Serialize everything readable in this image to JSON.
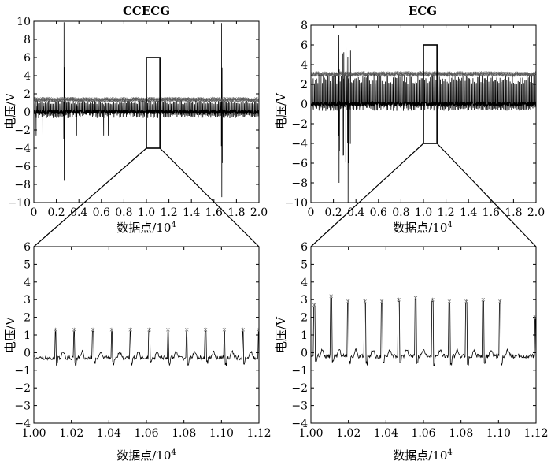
{
  "chart_data": [
    {
      "id": "top-left",
      "type": "line",
      "title": "CCECG",
      "xlabel": "数据点/10",
      "xlabel_exp": "4",
      "ylabel": "电压/V",
      "xlim": [
        0,
        2.0
      ],
      "ylim": [
        -10,
        10
      ],
      "xticks": [
        "0",
        "0.2",
        "0.4",
        "0.6",
        "0.8",
        "1.0",
        "1.2",
        "1.4",
        "1.6",
        "1.8",
        "2.0"
      ],
      "yticks": [
        "−10",
        "−8",
        "−6",
        "−4",
        "−2",
        "0",
        "2",
        "4",
        "6",
        "8",
        "10"
      ],
      "zoom_box": {
        "x0": 1.0,
        "x1": 1.12,
        "y0": -4,
        "y1": 6
      },
      "series": [
        {
          "values": {
            "baseline": 0,
            "r_peak": 1.2,
            "spike_events": [
              [
                0.27,
                9.9,
                -7.6
              ],
              [
                1.67,
                9.8,
                -9.4
              ]
            ]
          }
        }
      ]
    },
    {
      "id": "top-right",
      "type": "line",
      "title": "ECG",
      "xlabel": "数据点/10",
      "xlabel_exp": "4",
      "ylabel": "电压/V",
      "xlim": [
        0,
        2.0
      ],
      "ylim": [
        -10,
        8
      ],
      "xticks": [
        "0",
        "0.2",
        "0.4",
        "0.6",
        "0.8",
        "1.0",
        "1.2",
        "1.4",
        "1.6",
        "1.8",
        "2.0"
      ],
      "yticks": [
        "−10",
        "−8",
        "−6",
        "−4",
        "−2",
        "0",
        "2",
        "4",
        "6",
        "8"
      ],
      "zoom_box": {
        "x0": 1.0,
        "x1": 1.12,
        "y0": -4,
        "y1": 6
      },
      "series": [
        {
          "values": {
            "baseline": 0,
            "r_peak": 2.9,
            "spike_events": [
              [
                0.25,
                7.0,
                -8.0
              ],
              [
                0.33,
                4.8,
                -10.0
              ]
            ]
          }
        }
      ]
    },
    {
      "id": "bottom-left",
      "type": "line",
      "title": "",
      "xlabel": "数据点/10",
      "xlabel_exp": "4",
      "ylabel": "电压/V",
      "xlim": [
        1.0,
        1.12
      ],
      "ylim": [
        -4,
        6
      ],
      "xticks": [
        "1.00",
        "1.02",
        "1.04",
        "1.06",
        "1.08",
        "1.10",
        "1.12"
      ],
      "yticks": [
        "−4",
        "−3",
        "−2",
        "−1",
        "0",
        "1",
        "2",
        "3",
        "4",
        "5",
        "6"
      ],
      "series": [
        {
          "values": {
            "baseline": -0.3,
            "r_peak": 1.2,
            "beat_positions": [
              1.0115,
              1.0215,
              1.0315,
              1.0415,
              1.0515,
              1.0615,
              1.0715,
              1.0815,
              1.0915,
              1.1015,
              1.1115,
              1.1198
            ]
          }
        }
      ]
    },
    {
      "id": "bottom-right",
      "type": "line",
      "title": "",
      "xlabel": "数据点/10",
      "xlabel_exp": "4",
      "ylabel": "电压/V",
      "xlim": [
        1.0,
        1.12
      ],
      "ylim": [
        -4,
        6
      ],
      "xticks": [
        "1.00",
        "1.02",
        "1.04",
        "1.06",
        "1.08",
        "1.10",
        "1.12"
      ],
      "yticks": [
        "−4",
        "−3",
        "−2",
        "−1",
        "0",
        "1",
        "2",
        "3",
        "4",
        "5",
        "6"
      ],
      "series": [
        {
          "values": {
            "baseline": -0.2,
            "r_peaks": [
              2.6,
              3.1,
              2.8,
              2.8,
              2.8,
              2.9,
              3.0,
              2.9,
              2.8,
              2.8,
              2.9,
              2.8,
              1.9
            ],
            "beat_positions": [
              1.0018,
              1.0108,
              1.0198,
              1.0288,
              1.0378,
              1.0468,
              1.0558,
              1.0648,
              1.0738,
              1.0828,
              1.0918,
              1.1008,
              1.1195
            ]
          }
        }
      ]
    }
  ]
}
